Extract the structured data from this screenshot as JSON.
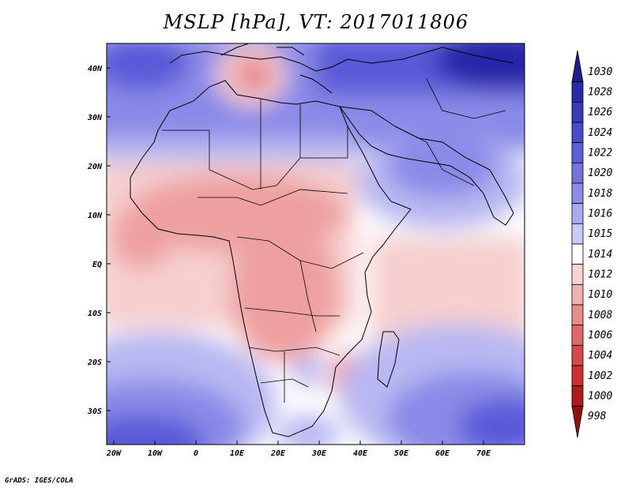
{
  "title": "MSLP [hPa], VT: 2017011806",
  "credit": "GrADS: IGES/COLA",
  "map": {
    "lon_ticks": [
      "20W",
      "10W",
      "0",
      "10E",
      "20E",
      "30E",
      "40E",
      "50E",
      "60E",
      "70E"
    ],
    "lat_ticks": [
      "40N",
      "30N",
      "20N",
      "10N",
      "EQ",
      "10S",
      "20S",
      "30S"
    ],
    "field_colors": {
      "deep_high": "#2828a8",
      "high": "#5a5ad8",
      "mid_high": "#8a8ae8",
      "low_high": "#b8b8f2",
      "neutral": "#ffffff",
      "low_low": "#f6cfcf",
      "low": "#eea0a0",
      "deep_low": "#dc6464",
      "coast": "#000000"
    }
  },
  "colorbar": {
    "labels": [
      "1030",
      "1028",
      "1026",
      "1024",
      "1022",
      "1020",
      "1018",
      "1016",
      "1015",
      "1014",
      "1012",
      "1010",
      "1008",
      "1006",
      "1004",
      "1002",
      "1000",
      "998"
    ],
    "colors": [
      "#1c1c8c",
      "#2a2aa8",
      "#3a3abc",
      "#4a4acc",
      "#5e5ed8",
      "#7474e0",
      "#8c8ce8",
      "#aaaaf0",
      "#cacaf6",
      "#ffffff",
      "#f8d4d4",
      "#f0b0b0",
      "#e88c8c",
      "#e06868",
      "#d84848",
      "#cc3030",
      "#b01c1c",
      "#901010"
    ]
  }
}
